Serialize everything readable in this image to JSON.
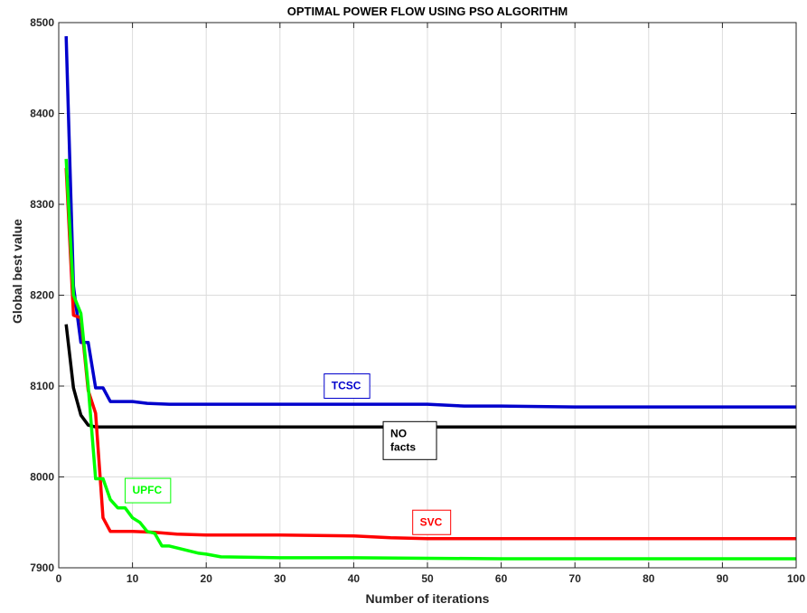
{
  "chart_data": {
    "type": "line",
    "title": "OPTIMAL POWER FLOW USING PSO ALGORITHM",
    "xlabel": "Number of iterations",
    "ylabel": "Global best value",
    "xlim": [
      0,
      100
    ],
    "ylim": [
      7900,
      8500
    ],
    "xticks": [
      0,
      10,
      20,
      30,
      40,
      50,
      60,
      70,
      80,
      90,
      100
    ],
    "yticks": [
      7900,
      8000,
      8100,
      8200,
      8300,
      8400,
      8500
    ],
    "grid": true,
    "series": [
      {
        "name": "TCSC",
        "color": "#0000cc",
        "x": [
          1,
          2,
          3,
          4,
          5,
          6,
          7,
          10,
          12,
          15,
          20,
          30,
          40,
          50,
          55,
          60,
          70,
          80,
          90,
          100
        ],
        "y": [
          8485,
          8210,
          8148,
          8148,
          8098,
          8098,
          8083,
          8083,
          8081,
          8080,
          8080,
          8080,
          8080,
          8080,
          8078,
          8078,
          8077,
          8077,
          8077,
          8077
        ]
      },
      {
        "name": "NO facts",
        "color": "#000000",
        "x": [
          1,
          2,
          3,
          4,
          5,
          10,
          20,
          40,
          60,
          80,
          100
        ],
        "y": [
          8168,
          8098,
          8068,
          8057,
          8055,
          8055,
          8055,
          8055,
          8055,
          8055,
          8055
        ]
      },
      {
        "name": "SVC",
        "color": "#ff0000",
        "x": [
          1,
          2,
          3,
          4,
          5,
          6,
          7,
          8,
          10,
          13,
          16,
          20,
          30,
          40,
          45,
          50,
          60,
          70,
          80,
          90,
          100
        ],
        "y": [
          8340,
          8178,
          8175,
          8095,
          8070,
          7955,
          7940,
          7940,
          7940,
          7939,
          7937,
          7936,
          7936,
          7935,
          7933,
          7932,
          7932,
          7932,
          7932,
          7932,
          7932
        ]
      },
      {
        "name": "UPFC",
        "color": "#00ff00",
        "x": [
          1,
          2,
          3,
          4,
          5,
          6,
          7,
          8,
          9,
          10,
          11,
          12,
          13,
          14,
          15,
          17,
          19,
          20,
          22,
          30,
          40,
          60,
          80,
          100
        ],
        "y": [
          8350,
          8200,
          8180,
          8100,
          7998,
          7998,
          7975,
          7966,
          7966,
          7955,
          7950,
          7940,
          7938,
          7924,
          7924,
          7920,
          7916,
          7915,
          7912,
          7911,
          7911,
          7910,
          7910,
          7910
        ]
      }
    ],
    "annotations": [
      {
        "label": "TCSC",
        "color": "#0000cc",
        "x": 36,
        "y": 8100
      },
      {
        "label": "NO\nfacts",
        "color": "#000000",
        "x": 44,
        "y": 8040
      },
      {
        "label": "SVC",
        "color": "#ff0000",
        "x": 48,
        "y": 7950
      },
      {
        "label": "UPFC",
        "color": "#00ff00",
        "x": 9,
        "y": 7985
      }
    ]
  }
}
